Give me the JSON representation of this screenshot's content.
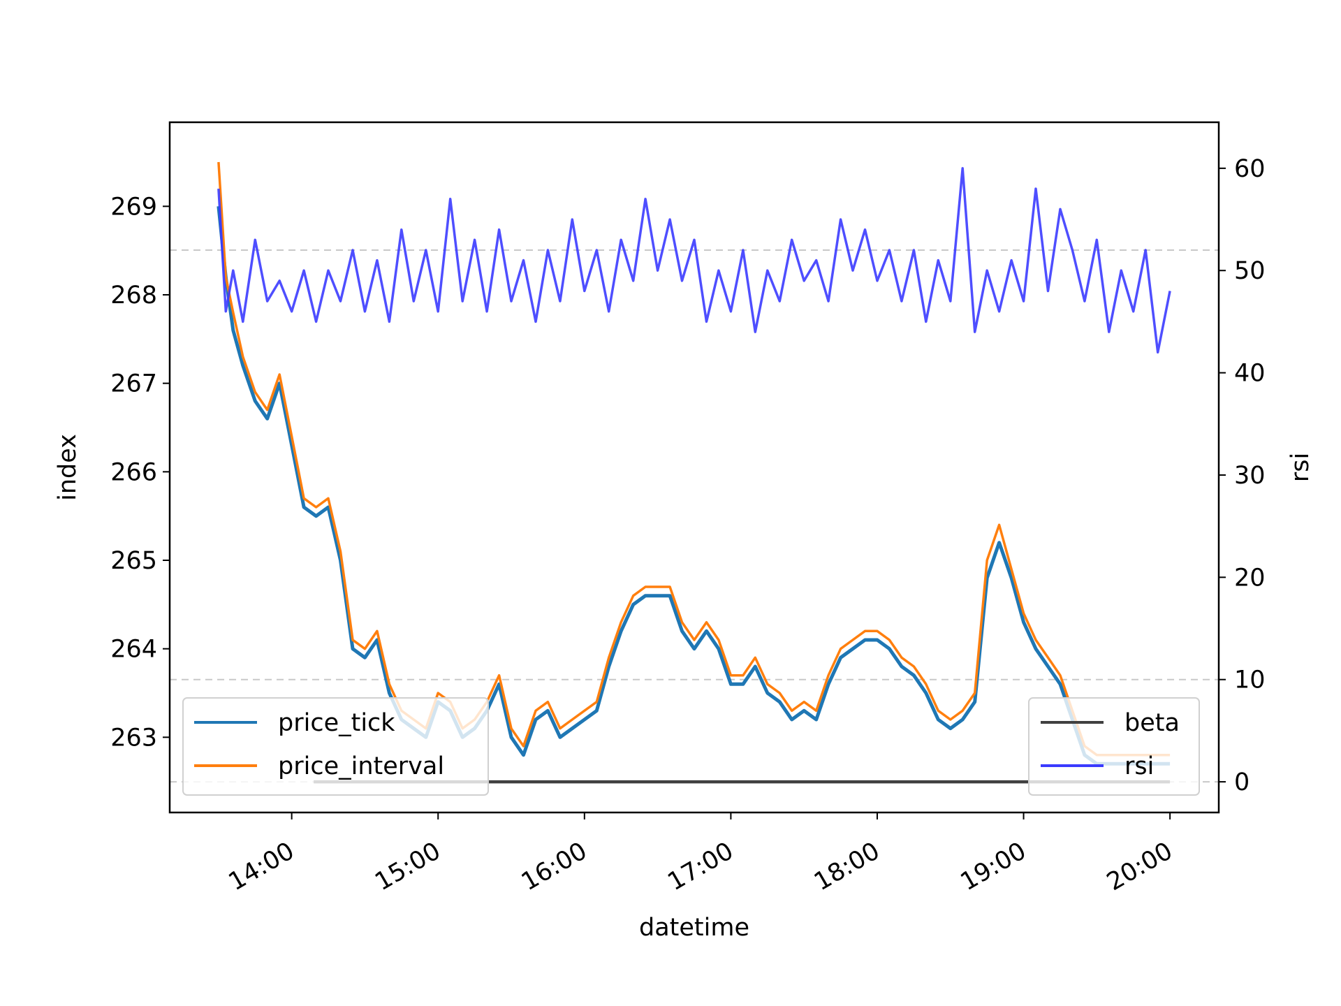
{
  "chart_data": {
    "type": "line",
    "title": "",
    "xlabel": "datetime",
    "ylabel": "index",
    "y2label": "rsi",
    "x_ticks": [
      "14:00",
      "15:00",
      "16:00",
      "17:00",
      "18:00",
      "19:00",
      "20:00"
    ],
    "x_range": [
      "13:10",
      "20:20"
    ],
    "ylim_left": [
      262.15,
      269.95
    ],
    "yticks_left": [
      263,
      264,
      265,
      266,
      267,
      268,
      269
    ],
    "ylim_right": [
      -3,
      64.5
    ],
    "yticks_right": [
      0,
      10,
      20,
      30,
      40,
      50,
      60
    ],
    "grid": false,
    "reference_lines_rsi": [
      0,
      10,
      52
    ],
    "colors": {
      "price_tick": "#1f77b4",
      "price_interval": "#ff7f0e",
      "beta": "#404040",
      "rsi": "#3b3bff",
      "reference": "#c8c8c8"
    },
    "legend_left": {
      "placement": "lower-left",
      "entries": [
        "price_tick",
        "price_interval"
      ]
    },
    "legend_right": {
      "placement": "lower-right",
      "entries": [
        "beta",
        "rsi"
      ]
    },
    "series": [
      {
        "name": "price_tick",
        "axis": "left",
        "x": [
          "13:30",
          "13:33",
          "13:36",
          "13:40",
          "13:45",
          "13:50",
          "13:55",
          "14:00",
          "14:05",
          "14:10",
          "14:15",
          "14:20",
          "14:25",
          "14:30",
          "14:35",
          "14:40",
          "14:45",
          "14:50",
          "14:55",
          "15:00",
          "15:05",
          "15:10",
          "15:15",
          "15:20",
          "15:25",
          "15:30",
          "15:35",
          "15:40",
          "15:45",
          "15:50",
          "15:55",
          "16:00",
          "16:05",
          "16:10",
          "16:15",
          "16:20",
          "16:25",
          "16:30",
          "16:35",
          "16:40",
          "16:45",
          "16:50",
          "16:55",
          "17:00",
          "17:05",
          "17:10",
          "17:15",
          "17:20",
          "17:25",
          "17:30",
          "17:35",
          "17:40",
          "17:45",
          "17:50",
          "17:55",
          "18:00",
          "18:05",
          "18:10",
          "18:15",
          "18:20",
          "18:25",
          "18:30",
          "18:35",
          "18:40",
          "18:45",
          "18:50",
          "18:55",
          "19:00",
          "19:05",
          "19:10",
          "19:15",
          "19:20",
          "19:25",
          "19:30",
          "19:35",
          "19:40",
          "19:45",
          "19:50",
          "19:55",
          "20:00"
        ],
        "values": [
          269.0,
          268.2,
          267.6,
          267.2,
          266.8,
          266.6,
          267.0,
          266.3,
          265.6,
          265.5,
          265.6,
          265.0,
          264.0,
          263.9,
          264.1,
          263.5,
          263.2,
          263.1,
          263.0,
          263.4,
          263.3,
          263.0,
          263.1,
          263.3,
          263.6,
          263.0,
          262.8,
          263.2,
          263.3,
          263.0,
          263.1,
          263.2,
          263.3,
          263.8,
          264.2,
          264.5,
          264.6,
          264.6,
          264.6,
          264.2,
          264.0,
          264.2,
          264.0,
          263.6,
          263.6,
          263.8,
          263.5,
          263.4,
          263.2,
          263.3,
          263.2,
          263.6,
          263.9,
          264.0,
          264.1,
          264.1,
          264.0,
          263.8,
          263.7,
          263.5,
          263.2,
          263.1,
          263.2,
          263.4,
          264.8,
          265.2,
          264.8,
          264.3,
          264.0,
          263.8,
          263.6,
          263.2,
          262.8,
          262.7,
          262.7,
          262.7,
          262.7,
          262.7,
          262.7,
          262.7
        ]
      },
      {
        "name": "price_interval",
        "axis": "left",
        "x": [
          "13:30",
          "13:33",
          "13:36",
          "13:40",
          "13:45",
          "13:50",
          "13:55",
          "14:00",
          "14:05",
          "14:10",
          "14:15",
          "14:20",
          "14:25",
          "14:30",
          "14:35",
          "14:40",
          "14:45",
          "14:50",
          "14:55",
          "15:00",
          "15:05",
          "15:10",
          "15:15",
          "15:20",
          "15:25",
          "15:30",
          "15:35",
          "15:40",
          "15:45",
          "15:50",
          "15:55",
          "16:00",
          "16:05",
          "16:10",
          "16:15",
          "16:20",
          "16:25",
          "16:30",
          "16:35",
          "16:40",
          "16:45",
          "16:50",
          "16:55",
          "17:00",
          "17:05",
          "17:10",
          "17:15",
          "17:20",
          "17:25",
          "17:30",
          "17:35",
          "17:40",
          "17:45",
          "17:50",
          "17:55",
          "18:00",
          "18:05",
          "18:10",
          "18:15",
          "18:20",
          "18:25",
          "18:30",
          "18:35",
          "18:40",
          "18:45",
          "18:50",
          "18:55",
          "19:00",
          "19:05",
          "19:10",
          "19:15",
          "19:20",
          "19:25",
          "19:30",
          "19:35",
          "19:40",
          "19:45",
          "19:50",
          "19:55",
          "20:00"
        ],
        "values": [
          269.5,
          268.2,
          267.8,
          267.3,
          266.9,
          266.7,
          267.1,
          266.4,
          265.7,
          265.6,
          265.7,
          265.1,
          264.1,
          264.0,
          264.2,
          263.6,
          263.3,
          263.2,
          263.1,
          263.5,
          263.4,
          263.1,
          263.2,
          263.4,
          263.7,
          263.1,
          262.9,
          263.3,
          263.4,
          263.1,
          263.2,
          263.3,
          263.4,
          263.9,
          264.3,
          264.6,
          264.7,
          264.7,
          264.7,
          264.3,
          264.1,
          264.3,
          264.1,
          263.7,
          263.7,
          263.9,
          263.6,
          263.5,
          263.3,
          263.4,
          263.3,
          263.7,
          264.0,
          264.1,
          264.2,
          264.2,
          264.1,
          263.9,
          263.8,
          263.6,
          263.3,
          263.2,
          263.3,
          263.5,
          265.0,
          265.4,
          264.9,
          264.4,
          264.1,
          263.9,
          263.7,
          263.3,
          262.9,
          262.8,
          262.8,
          262.8,
          262.8,
          262.8,
          262.8,
          262.8
        ]
      },
      {
        "name": "beta",
        "axis": "right",
        "x": [
          "14:09",
          "20:00"
        ],
        "values": [
          0,
          0
        ]
      },
      {
        "name": "rsi",
        "axis": "right",
        "x": [
          "13:30",
          "13:33",
          "13:36",
          "13:40",
          "13:45",
          "13:50",
          "13:55",
          "14:00",
          "14:05",
          "14:10",
          "14:15",
          "14:20",
          "14:25",
          "14:30",
          "14:35",
          "14:40",
          "14:45",
          "14:50",
          "14:55",
          "15:00",
          "15:05",
          "15:10",
          "15:15",
          "15:20",
          "15:25",
          "15:30",
          "15:35",
          "15:40",
          "15:45",
          "15:50",
          "15:55",
          "16:00",
          "16:05",
          "16:10",
          "16:15",
          "16:20",
          "16:25",
          "16:30",
          "16:35",
          "16:40",
          "16:45",
          "16:50",
          "16:55",
          "17:00",
          "17:05",
          "17:10",
          "17:15",
          "17:20",
          "17:25",
          "17:30",
          "17:35",
          "17:40",
          "17:45",
          "17:50",
          "17:55",
          "18:00",
          "18:05",
          "18:10",
          "18:15",
          "18:20",
          "18:25",
          "18:30",
          "18:35",
          "18:40",
          "18:45",
          "18:50",
          "18:55",
          "19:00",
          "19:05",
          "19:10",
          "19:15",
          "19:20",
          "19:25",
          "19:30",
          "19:35",
          "19:40",
          "19:45",
          "19:50",
          "19:55",
          "20:00"
        ],
        "values": [
          58,
          46,
          50,
          45,
          53,
          47,
          49,
          46,
          50,
          45,
          50,
          47,
          52,
          46,
          51,
          45,
          54,
          47,
          52,
          46,
          57,
          47,
          53,
          46,
          54,
          47,
          51,
          45,
          52,
          47,
          55,
          48,
          52,
          46,
          53,
          49,
          57,
          50,
          55,
          49,
          53,
          45,
          50,
          46,
          52,
          44,
          50,
          47,
          53,
          49,
          51,
          47,
          55,
          50,
          54,
          49,
          52,
          47,
          52,
          45,
          51,
          47,
          60,
          44,
          50,
          46,
          51,
          47,
          58,
          48,
          56,
          52,
          47,
          53,
          44,
          50,
          46,
          52,
          42,
          48
        ]
      }
    ]
  }
}
